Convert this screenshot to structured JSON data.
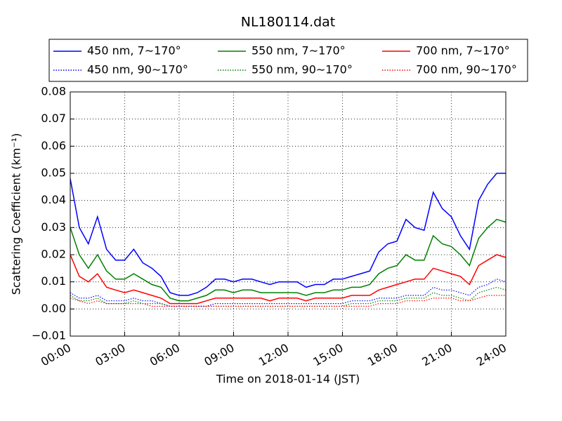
{
  "chart_data": {
    "type": "line",
    "title": "NL180114.dat",
    "x_label": "Time on 2018-01-14 (JST)",
    "y_label": "Scattering Coefficient (km⁻¹)",
    "x": [
      0,
      0.5,
      1,
      1.5,
      2,
      2.5,
      3,
      3.5,
      4,
      4.5,
      5,
      5.5,
      6,
      6.5,
      7,
      7.5,
      8,
      8.5,
      9,
      9.5,
      10,
      10.5,
      11,
      11.5,
      12,
      12.5,
      13,
      13.5,
      14,
      14.5,
      15,
      15.5,
      16,
      16.5,
      17,
      17.5,
      18,
      18.5,
      19,
      19.5,
      20,
      20.5,
      21,
      21.5,
      22,
      22.5,
      23,
      23.5,
      24
    ],
    "xlim": [
      0,
      24
    ],
    "xticks": [
      {
        "value": 0,
        "label": "00:00"
      },
      {
        "value": 3,
        "label": "03:00"
      },
      {
        "value": 6,
        "label": "06:00"
      },
      {
        "value": 9,
        "label": "09:00"
      },
      {
        "value": 12,
        "label": "12:00"
      },
      {
        "value": 15,
        "label": "15:00"
      },
      {
        "value": 18,
        "label": "18:00"
      },
      {
        "value": 21,
        "label": "21:00"
      },
      {
        "value": 24,
        "label": "24:00"
      }
    ],
    "ylim": [
      -0.01,
      0.08
    ],
    "yticks": [
      {
        "value": -0.01,
        "label": "−0.01"
      },
      {
        "value": 0,
        "label": "0.00"
      },
      0.01,
      0.02,
      0.03,
      0.04,
      0.05,
      0.06,
      0.07,
      0.08
    ],
    "grid": true,
    "series": [
      {
        "name": "450 nm, 7∼170°",
        "color": "#0000ff",
        "linestyle": "solid",
        "values": [
          0.048,
          0.03,
          0.024,
          0.034,
          0.022,
          0.018,
          0.018,
          0.022,
          0.017,
          0.015,
          0.012,
          0.006,
          0.005,
          0.005,
          0.006,
          0.008,
          0.011,
          0.011,
          0.01,
          0.011,
          0.011,
          0.01,
          0.009,
          0.01,
          0.01,
          0.01,
          0.008,
          0.009,
          0.009,
          0.011,
          0.011,
          0.012,
          0.013,
          0.014,
          0.021,
          0.024,
          0.025,
          0.033,
          0.03,
          0.029,
          0.043,
          0.037,
          0.034,
          0.027,
          0.022,
          0.04,
          0.046,
          0.05,
          0.05
        ]
      },
      {
        "name": "450 nm, 90∼170°",
        "color": "#0000ff",
        "linestyle": "dotted",
        "values": [
          0.006,
          0.004,
          0.004,
          0.005,
          0.003,
          0.003,
          0.003,
          0.004,
          0.003,
          0.003,
          0.002,
          0.001,
          0.001,
          0.001,
          0.001,
          0.001,
          0.002,
          0.002,
          0.002,
          0.002,
          0.002,
          0.002,
          0.002,
          0.002,
          0.002,
          0.002,
          0.002,
          0.002,
          0.002,
          0.002,
          0.002,
          0.003,
          0.003,
          0.003,
          0.004,
          0.004,
          0.004,
          0.005,
          0.005,
          0.005,
          0.008,
          0.007,
          0.007,
          0.006,
          0.005,
          0.008,
          0.009,
          0.011,
          0.01
        ]
      },
      {
        "name": "550 nm, 7∼170°",
        "color": "#008000",
        "linestyle": "solid",
        "values": [
          0.03,
          0.02,
          0.015,
          0.02,
          0.014,
          0.011,
          0.011,
          0.013,
          0.011,
          0.009,
          0.008,
          0.004,
          0.003,
          0.003,
          0.004,
          0.005,
          0.007,
          0.007,
          0.006,
          0.007,
          0.007,
          0.006,
          0.006,
          0.006,
          0.006,
          0.006,
          0.005,
          0.006,
          0.006,
          0.007,
          0.007,
          0.008,
          0.008,
          0.009,
          0.013,
          0.015,
          0.016,
          0.02,
          0.018,
          0.018,
          0.027,
          0.024,
          0.023,
          0.02,
          0.016,
          0.026,
          0.03,
          0.033,
          0.032
        ]
      },
      {
        "name": "550 nm, 90∼170°",
        "color": "#008000",
        "linestyle": "dotted",
        "values": [
          0.005,
          0.003,
          0.003,
          0.004,
          0.002,
          0.002,
          0.002,
          0.003,
          0.002,
          0.002,
          0.002,
          0.001,
          0.001,
          0.001,
          0.001,
          0.001,
          0.001,
          0.001,
          0.001,
          0.001,
          0.001,
          0.001,
          0.001,
          0.001,
          0.001,
          0.001,
          0.001,
          0.001,
          0.001,
          0.001,
          0.001,
          0.002,
          0.002,
          0.002,
          0.003,
          0.003,
          0.003,
          0.004,
          0.004,
          0.004,
          0.006,
          0.005,
          0.005,
          0.004,
          0.003,
          0.006,
          0.007,
          0.008,
          0.007
        ]
      },
      {
        "name": "700 nm, 7∼170°",
        "color": "#ff0000",
        "linestyle": "solid",
        "values": [
          0.02,
          0.012,
          0.01,
          0.013,
          0.008,
          0.007,
          0.006,
          0.007,
          0.006,
          0.005,
          0.004,
          0.002,
          0.002,
          0.002,
          0.002,
          0.003,
          0.004,
          0.004,
          0.004,
          0.004,
          0.004,
          0.004,
          0.003,
          0.004,
          0.004,
          0.004,
          0.003,
          0.004,
          0.004,
          0.004,
          0.004,
          0.005,
          0.005,
          0.005,
          0.007,
          0.008,
          0.009,
          0.01,
          0.011,
          0.011,
          0.015,
          0.014,
          0.013,
          0.012,
          0.009,
          0.016,
          0.018,
          0.02,
          0.019
        ]
      },
      {
        "name": "700 nm, 90∼170°",
        "color": "#ff0000",
        "linestyle": "dotted",
        "values": [
          0.004,
          0.003,
          0.002,
          0.003,
          0.002,
          0.002,
          0.002,
          0.002,
          0.002,
          0.001,
          0.001,
          0.001,
          0.001,
          0.001,
          0.001,
          0.001,
          0.001,
          0.001,
          0.001,
          0.001,
          0.001,
          0.001,
          0.001,
          0.001,
          0.001,
          0.001,
          0.001,
          0.001,
          0.001,
          0.001,
          0.001,
          0.001,
          0.001,
          0.001,
          0.002,
          0.002,
          0.002,
          0.003,
          0.003,
          0.003,
          0.004,
          0.004,
          0.004,
          0.003,
          0.003,
          0.004,
          0.005,
          0.005,
          0.005
        ]
      }
    ]
  }
}
